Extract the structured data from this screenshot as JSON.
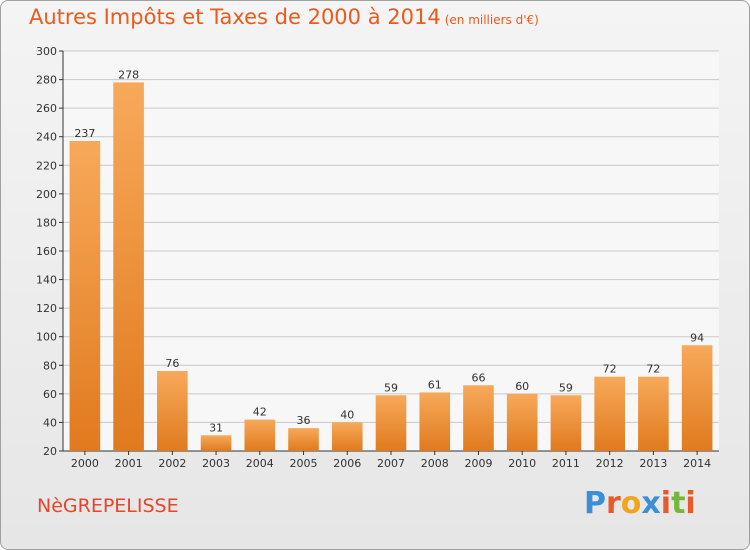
{
  "title": "Autres Impôts et Taxes de 2000 à 2014",
  "unit": "(en milliers d'€)",
  "city": "NèGREPELISSE",
  "logo": {
    "text": "Proxiti",
    "colors": [
      "#3a8fd6",
      "#e85a2a",
      "#f2a51c",
      "#3a8fd6",
      "#e85a2a",
      "#73b83a",
      "#e85a2a"
    ]
  },
  "colors": {
    "title": "#ea5b1c",
    "bar_light": "#f7a95a",
    "bar_dark": "#e07a1e",
    "grid": "#c8c8c8",
    "axis": "#333333"
  },
  "chart_data": {
    "type": "bar",
    "title": "Autres Impôts et Taxes de 2000 à 2014",
    "xlabel": "",
    "ylabel": "",
    "categories": [
      "2000",
      "2001",
      "2002",
      "2003",
      "2004",
      "2005",
      "2006",
      "2007",
      "2008",
      "2009",
      "2010",
      "2011",
      "2012",
      "2013",
      "2014"
    ],
    "values": [
      237,
      278,
      76,
      31,
      42,
      36,
      40,
      59,
      61,
      66,
      60,
      59,
      72,
      72,
      94
    ],
    "ylim": [
      20,
      300
    ],
    "yticks": [
      20,
      40,
      60,
      80,
      100,
      120,
      140,
      160,
      180,
      200,
      220,
      240,
      260,
      280,
      300
    ],
    "grid": true,
    "legend": "none"
  }
}
